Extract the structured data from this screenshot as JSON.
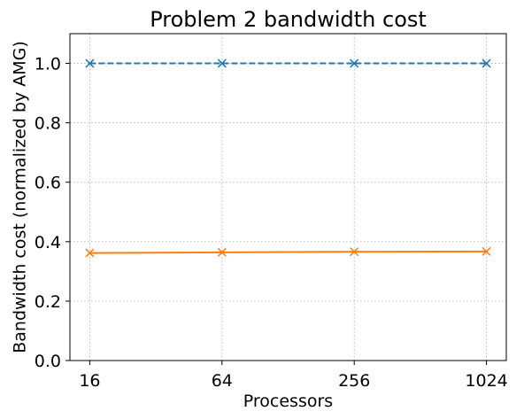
{
  "chart_data": {
    "type": "line",
    "title": "Problem 2 bandwidth cost",
    "xlabel": "Processors",
    "ylabel": "Bandwidth cost (normalized by AMG)",
    "x_scale": "log2",
    "categories": [
      "16",
      "64",
      "256",
      "1024"
    ],
    "x": [
      16,
      64,
      256,
      1024
    ],
    "ylim": [
      0,
      1.1
    ],
    "yticks": [
      "0.0",
      "0.2",
      "0.4",
      "0.6",
      "0.8",
      "1.0"
    ],
    "grid": true,
    "legend": "none",
    "series": [
      {
        "values": [
          1.0,
          1.0,
          1.0,
          1.0
        ],
        "color": "#1f77b4",
        "line_style": "dashed",
        "marker": "x"
      },
      {
        "values": [
          0.362,
          0.364,
          0.366,
          0.367
        ],
        "color": "#ff7f0e",
        "line_style": "solid",
        "marker": "x"
      }
    ]
  }
}
